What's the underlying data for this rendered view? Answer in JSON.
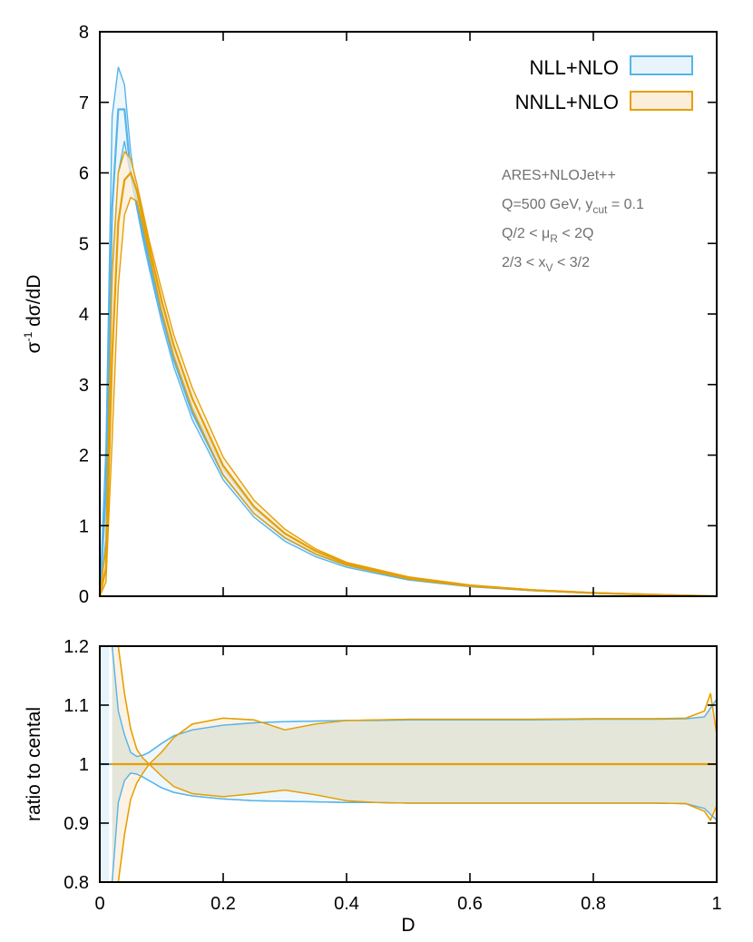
{
  "chart_data": [
    {
      "type": "line",
      "panel": "main",
      "ylabel": "σ⁻¹ dσ/dD",
      "xlim": [
        0,
        1
      ],
      "ylim": [
        0,
        8
      ],
      "xticks": [
        0,
        0.2,
        0.4,
        0.6,
        0.8,
        1
      ],
      "yticks": [
        "0",
        "1",
        "2",
        "3",
        "4",
        "5",
        "6",
        "7",
        "8"
      ],
      "legend_position": "top-right",
      "grid": false,
      "annotations": {
        "line1": "ARES+NLOJet++",
        "line2_pre": "Q=500 GeV, y",
        "line2_sub": "cut",
        "line2_post": " = 0.1",
        "line3_pre": "Q/2 < μ",
        "line3_sub": "R",
        "line3_post": " < 2Q",
        "line4_pre": "2/3 < x",
        "line4_sub": "V",
        "line4_post": " < 3/2"
      },
      "x": [
        0.01,
        0.02,
        0.03,
        0.04,
        0.05,
        0.06,
        0.07,
        0.08,
        0.1,
        0.12,
        0.15,
        0.2,
        0.25,
        0.3,
        0.35,
        0.4,
        0.5,
        0.6,
        0.7,
        0.8,
        0.9,
        1.0
      ],
      "series": [
        {
          "name": "NLL+NLO",
          "color": "#56b4e9",
          "fill": "#e8f4fb",
          "central": [
            1.5,
            5.5,
            6.9,
            6.9,
            6.0,
            5.6,
            5.15,
            4.75,
            4.0,
            3.35,
            2.6,
            1.72,
            1.18,
            0.83,
            0.6,
            0.44,
            0.25,
            0.145,
            0.085,
            0.045,
            0.02,
            0.0
          ],
          "upper": [
            2.1,
            6.8,
            7.5,
            7.25,
            6.3,
            5.7,
            5.25,
            4.85,
            4.1,
            3.45,
            2.7,
            1.8,
            1.24,
            0.88,
            0.64,
            0.47,
            0.27,
            0.155,
            0.09,
            0.048,
            0.022,
            0.0
          ],
          "lower": [
            0.8,
            4.3,
            6.0,
            6.45,
            5.95,
            5.5,
            5.05,
            4.65,
            3.9,
            3.25,
            2.5,
            1.65,
            1.12,
            0.78,
            0.56,
            0.41,
            0.23,
            0.135,
            0.08,
            0.042,
            0.019,
            0.0
          ]
        },
        {
          "name": "NNLL+NLO",
          "color": "#e69f00",
          "fill": "#fbeeda",
          "central": [
            0.4,
            3.4,
            5.3,
            5.9,
            6.0,
            5.75,
            5.35,
            4.95,
            4.2,
            3.55,
            2.8,
            1.85,
            1.27,
            0.89,
            0.64,
            0.46,
            0.26,
            0.15,
            0.088,
            0.047,
            0.021,
            0.0
          ],
          "upper": [
            0.7,
            4.6,
            6.0,
            6.3,
            6.2,
            5.85,
            5.45,
            5.05,
            4.35,
            3.7,
            2.95,
            1.97,
            1.36,
            0.95,
            0.67,
            0.48,
            0.275,
            0.16,
            0.093,
            0.05,
            0.022,
            0.0
          ],
          "lower": [
            0.2,
            2.2,
            4.4,
            5.4,
            5.65,
            5.6,
            5.25,
            4.85,
            4.05,
            3.4,
            2.65,
            1.72,
            1.17,
            0.83,
            0.6,
            0.44,
            0.245,
            0.14,
            0.083,
            0.044,
            0.02,
            0.0
          ]
        }
      ]
    },
    {
      "type": "line",
      "panel": "ratio",
      "xlabel": "D",
      "ylabel": "ratio to cental",
      "xlim": [
        0,
        1
      ],
      "ylim": [
        0.8,
        1.2
      ],
      "xticks": [
        "0",
        "0.2",
        "0.4",
        "0.6",
        "0.8",
        "1"
      ],
      "yticks": [
        "0.8",
        "0.9",
        "1",
        "1.1",
        "1.2"
      ],
      "x": [
        0.02,
        0.03,
        0.04,
        0.05,
        0.06,
        0.07,
        0.08,
        0.1,
        0.12,
        0.15,
        0.2,
        0.25,
        0.3,
        0.35,
        0.4,
        0.45,
        0.5,
        0.6,
        0.7,
        0.8,
        0.9,
        0.95,
        0.98,
        0.99,
        1.0
      ],
      "series": [
        {
          "name": "NLL+NLO",
          "color": "#56b4e9",
          "fill": "#e8f4fb",
          "upper": [
            1.2,
            1.09,
            1.05,
            1.02,
            1.013,
            1.015,
            1.02,
            1.035,
            1.048,
            1.058,
            1.066,
            1.07,
            1.072,
            1.073,
            1.074,
            1.074,
            1.075,
            1.075,
            1.075,
            1.076,
            1.076,
            1.077,
            1.08,
            1.095,
            1.11
          ],
          "lower": [
            0.8,
            0.935,
            0.972,
            0.985,
            0.983,
            0.978,
            0.972,
            0.96,
            0.952,
            0.946,
            0.941,
            0.938,
            0.937,
            0.936,
            0.935,
            0.935,
            0.934,
            0.934,
            0.934,
            0.934,
            0.934,
            0.933,
            0.925,
            0.915,
            0.905
          ]
        },
        {
          "name": "NNLL+NLO",
          "color": "#e69f00",
          "fill": "#fbeeda",
          "upper": [
            1.2,
            1.2,
            1.12,
            1.06,
            1.025,
            1.01,
            1.0,
            1.02,
            1.045,
            1.068,
            1.078,
            1.075,
            1.058,
            1.068,
            1.074,
            1.075,
            1.076,
            1.076,
            1.076,
            1.077,
            1.077,
            1.078,
            1.09,
            1.12,
            1.05
          ],
          "lower": [
            0.8,
            0.8,
            0.88,
            0.94,
            0.968,
            0.985,
            1.0,
            0.98,
            0.962,
            0.95,
            0.945,
            0.95,
            0.956,
            0.948,
            0.938,
            0.935,
            0.934,
            0.934,
            0.934,
            0.934,
            0.934,
            0.933,
            0.92,
            0.905,
            0.93
          ]
        }
      ]
    }
  ]
}
